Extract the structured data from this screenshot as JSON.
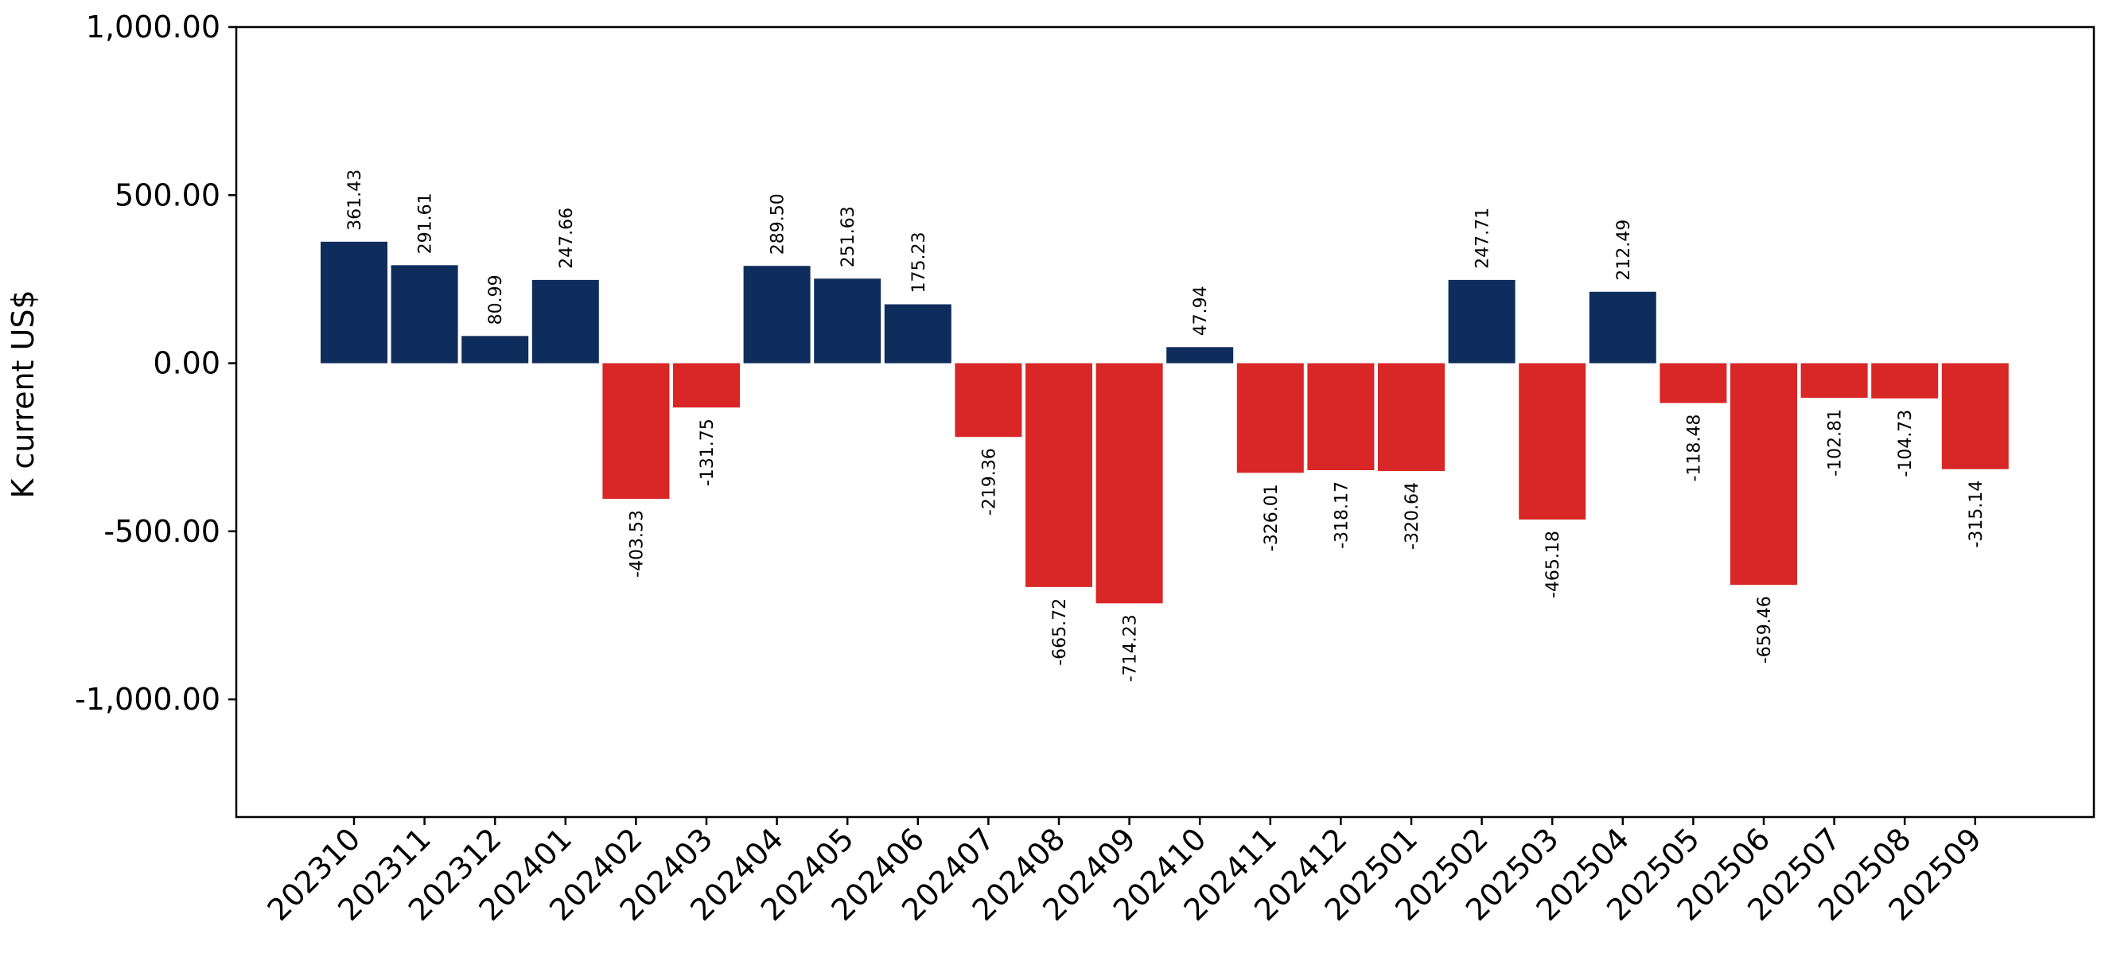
{
  "chart_data": {
    "type": "bar",
    "title": "",
    "xlabel": "",
    "ylabel": "K current US$",
    "ylim": [
      -1350,
      1000
    ],
    "yticks": [
      1000,
      500,
      0,
      -500,
      -1000
    ],
    "ytick_labels": [
      "1,000.00",
      "500.00",
      "0.00",
      "-500.00",
      "-1,000.00"
    ],
    "grid": false,
    "colors": {
      "positive": "#0f2d5c",
      "negative": "#d92626"
    },
    "categories": [
      "202310",
      "202311",
      "202312",
      "202401",
      "202402",
      "202403",
      "202404",
      "202405",
      "202406",
      "202407",
      "202408",
      "202409",
      "202410",
      "202411",
      "202412",
      "202501",
      "202502",
      "202503",
      "202504",
      "202505",
      "202506",
      "202507",
      "202508",
      "202509"
    ],
    "values": [
      361.43,
      291.61,
      80.99,
      247.66,
      -403.53,
      -131.75,
      289.5,
      251.63,
      175.23,
      -219.36,
      -665.72,
      -714.23,
      47.94,
      -326.01,
      -318.17,
      -320.64,
      247.71,
      -465.18,
      212.49,
      -118.48,
      -659.46,
      -102.81,
      -104.73,
      -315.14
    ],
    "value_labels": [
      "361.43",
      "291.61",
      "80.99",
      "247.66",
      "-403.53",
      "-131.75",
      "289.50",
      "251.63",
      "175.23",
      "-219.36",
      "-665.72",
      "-714.23",
      "47.94",
      "-326.01",
      "-318.17",
      "-320.64",
      "247.71",
      "-465.18",
      "212.49",
      "-118.48",
      "-659.46",
      "-102.81",
      "-104.73",
      "-315.14"
    ]
  }
}
